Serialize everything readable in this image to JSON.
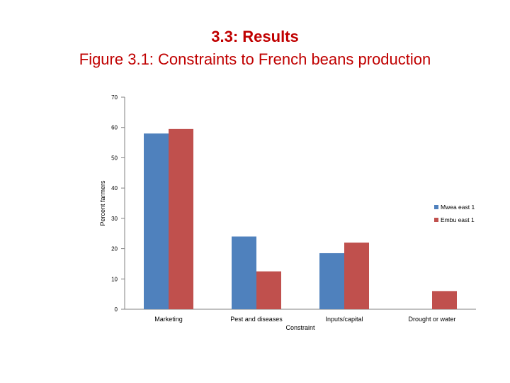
{
  "slide": {
    "heading": "3.3: Results",
    "subheading": "Figure 3.1: Constraints to French beans production"
  },
  "colors": {
    "title": "#c00000",
    "series_1": "#4f81bd",
    "series_2": "#c0504d",
    "axis": "#808080"
  },
  "chart_data": {
    "type": "bar",
    "title": "",
    "xlabel": "Constraint",
    "ylabel": "Percent farmers",
    "ylim": [
      0,
      70
    ],
    "yticks": [
      0,
      10,
      20,
      30,
      40,
      50,
      60,
      70
    ],
    "grid": false,
    "legend_position": "right",
    "categories": [
      "Marketing",
      "Pest and diseases",
      "Inputs/capital",
      "Drought or water"
    ],
    "series": [
      {
        "name": "Mwea east 1",
        "color": "#4f81bd",
        "values": [
          58,
          24,
          18.5,
          0
        ]
      },
      {
        "name": "Embu east 1",
        "color": "#c0504d",
        "values": [
          59.5,
          12.5,
          22,
          6
        ]
      }
    ]
  }
}
